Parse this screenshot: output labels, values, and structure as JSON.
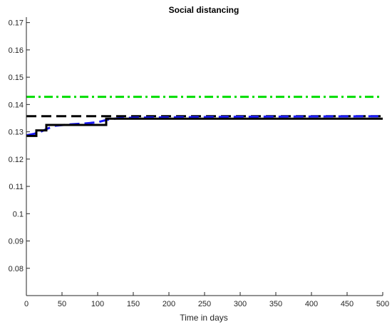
{
  "chart_data": {
    "type": "line",
    "title": "Social distancing",
    "xlabel": "Time in days",
    "ylabel": "",
    "xlim": [
      0,
      500
    ],
    "ylim": [
      0.07,
      0.172
    ],
    "xticks": [
      0,
      50,
      100,
      150,
      200,
      250,
      300,
      350,
      400,
      450,
      500
    ],
    "yticks": [
      0.08,
      0.09,
      0.1,
      0.11,
      0.12,
      0.13,
      0.14,
      0.15,
      0.16,
      0.17
    ],
    "xtick_labels": [
      "0",
      "50",
      "100",
      "150",
      "200",
      "250",
      "300",
      "350",
      "400",
      "450",
      "500"
    ],
    "ytick_labels": [
      "0.08",
      "0.09",
      "0.1",
      "0.11",
      "0.12",
      "0.13",
      "0.14",
      "0.15",
      "0.16",
      "0.17"
    ],
    "grid": false,
    "series": [
      {
        "color": "#00dd00",
        "style": "dashdot",
        "x": [
          0,
          500
        ],
        "y": [
          0.1428,
          0.1428
        ]
      },
      {
        "color": "#000000",
        "style": "dashed",
        "x": [
          0,
          500
        ],
        "y": [
          0.1357,
          0.1357
        ]
      },
      {
        "color": "#1a1aff",
        "style": "dashed",
        "x": [
          0,
          10,
          20,
          30,
          40,
          60,
          80,
          100,
          115,
          130,
          150,
          200,
          300,
          400,
          500
        ],
        "y": [
          0.1287,
          0.1292,
          0.13,
          0.1312,
          0.1322,
          0.1327,
          0.133,
          0.1335,
          0.1345,
          0.135,
          0.1352,
          0.1353,
          0.1355,
          0.1356,
          0.1357
        ]
      },
      {
        "color": "#000000",
        "style": "solid",
        "step": true,
        "x": [
          0,
          14,
          14,
          28,
          28,
          112,
          112,
          500
        ],
        "y": [
          0.1285,
          0.1285,
          0.1305,
          0.1305,
          0.1325,
          0.1325,
          0.1348,
          0.1348
        ]
      }
    ]
  }
}
